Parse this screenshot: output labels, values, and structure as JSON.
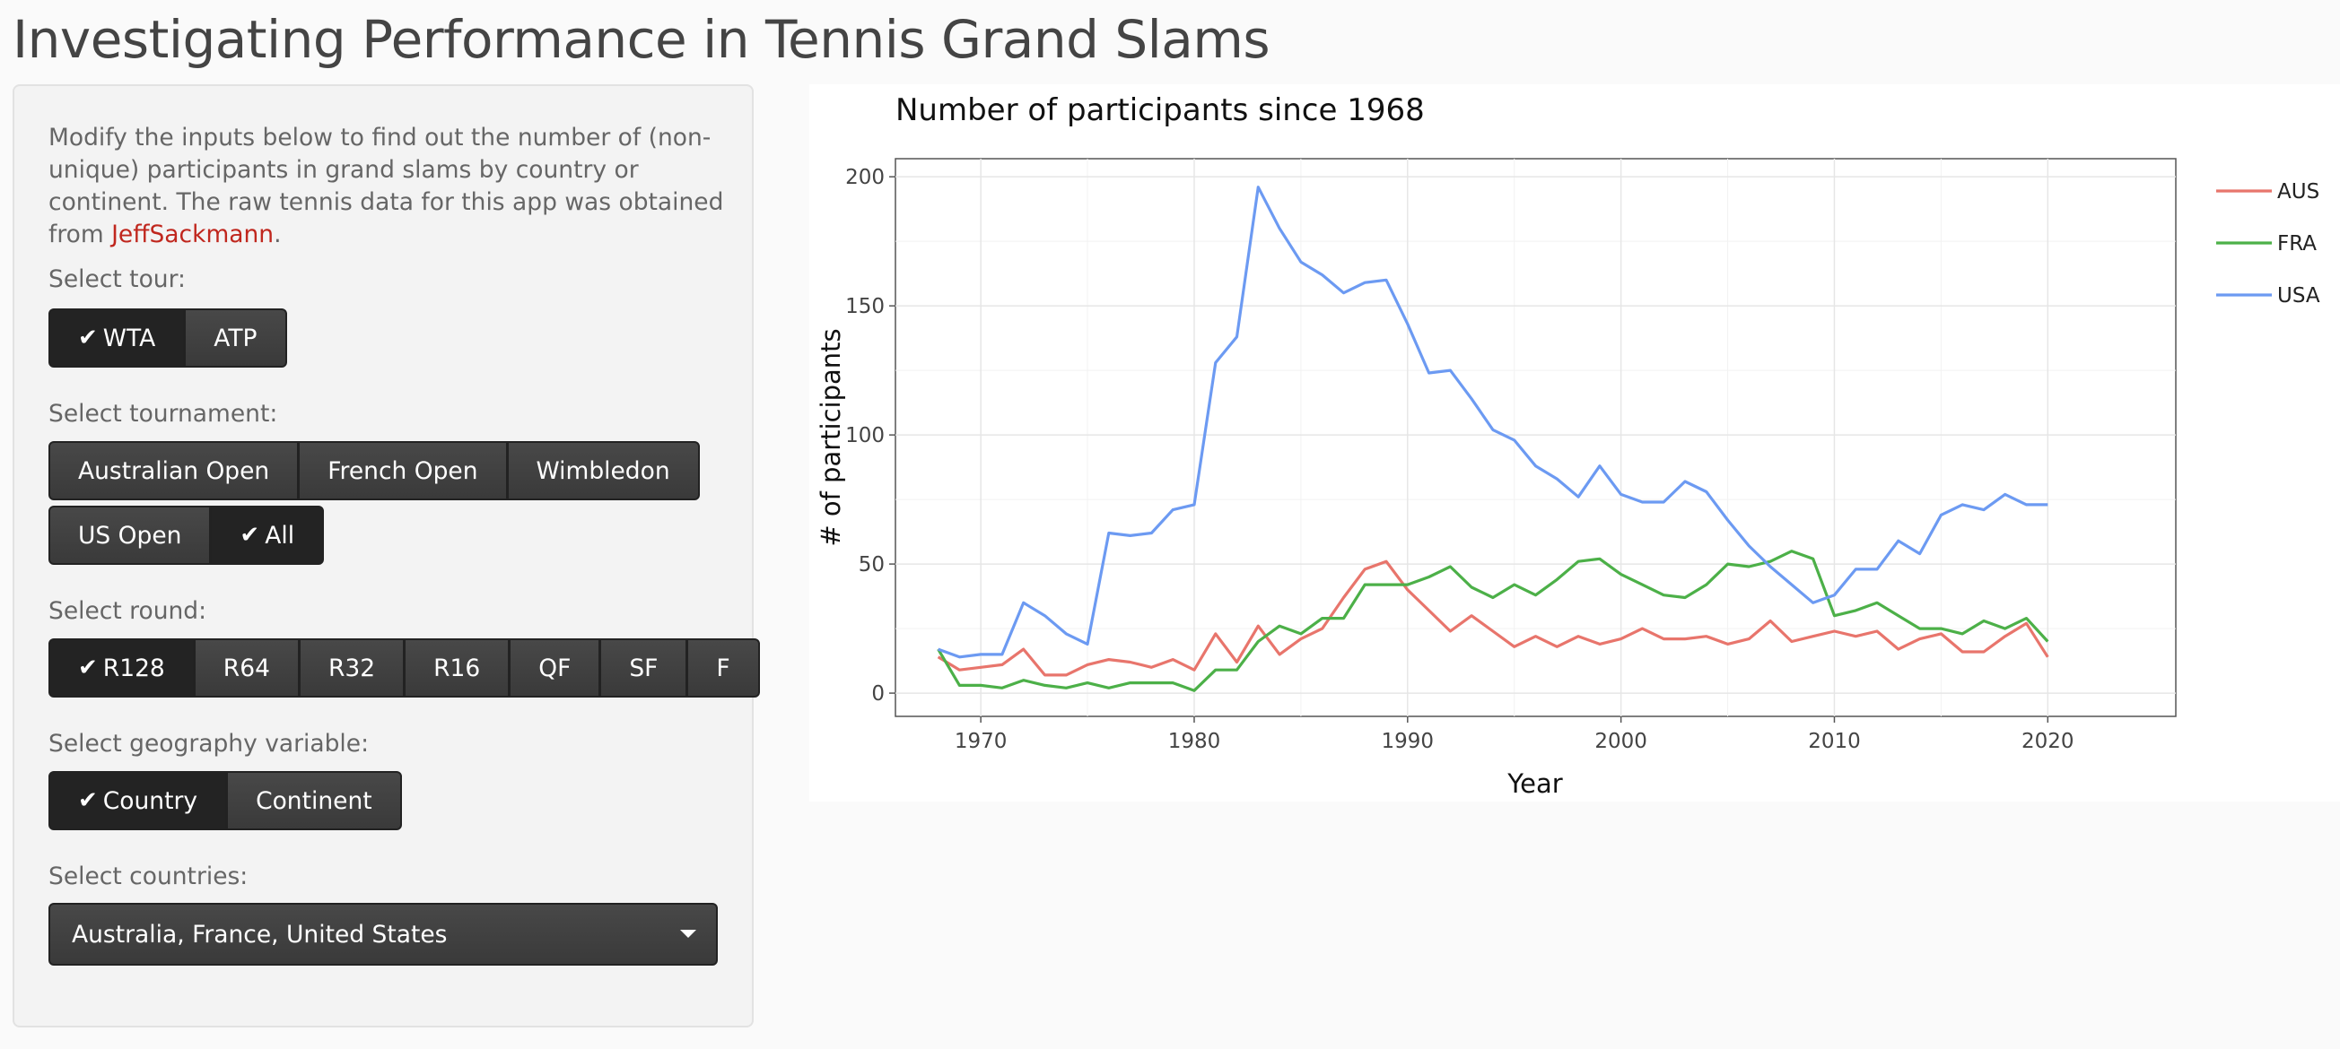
{
  "page": {
    "title": "Investigating Performance in Tennis Grand Slams"
  },
  "sidebar": {
    "intro_text": "Modify the inputs below to find out the number of (non-unique) participants in grand slams by country or continent. The raw tennis data for this app was obtained from ",
    "intro_link": "JeffSackmann",
    "intro_end": ".",
    "tour": {
      "label": "Select tour:",
      "options": [
        "WTA",
        "ATP"
      ],
      "selected": "WTA"
    },
    "tournament": {
      "label": "Select tournament:",
      "options": [
        "Australian Open",
        "French Open",
        "Wimbledon",
        "US Open",
        "All"
      ],
      "selected": "All"
    },
    "round": {
      "label": "Select round:",
      "options": [
        "R128",
        "R64",
        "R32",
        "R16",
        "QF",
        "SF",
        "F"
      ],
      "selected": "R128"
    },
    "geography": {
      "label": "Select geography variable:",
      "options": [
        "Country",
        "Continent"
      ],
      "selected": "Country"
    },
    "countries": {
      "label": "Select countries:",
      "value": "Australia, France, United States"
    },
    "check_icon": "check-icon",
    "dropdown_icon": "caret-down-icon"
  },
  "chart_data": {
    "type": "line",
    "title": "Number of participants since 1968",
    "xlabel": "Year",
    "ylabel": "# of participants",
    "xlim": [
      1966,
      2026
    ],
    "ylim": [
      -9,
      207
    ],
    "xticks": [
      1970,
      1980,
      1990,
      2000,
      2010,
      2020
    ],
    "yticks": [
      0,
      50,
      100,
      150,
      200
    ],
    "grid": true,
    "legend_position": "right",
    "x": [
      1968,
      1969,
      1970,
      1971,
      1972,
      1973,
      1974,
      1975,
      1976,
      1977,
      1978,
      1979,
      1980,
      1981,
      1982,
      1983,
      1984,
      1985,
      1986,
      1987,
      1988,
      1989,
      1990,
      1991,
      1992,
      1993,
      1994,
      1995,
      1996,
      1997,
      1998,
      1999,
      2000,
      2001,
      2002,
      2003,
      2004,
      2005,
      2006,
      2007,
      2008,
      2009,
      2010,
      2011,
      2012,
      2013,
      2014,
      2015,
      2016,
      2017,
      2018,
      2019,
      2020
    ],
    "series": [
      {
        "name": "AUS",
        "color": "#e8756c",
        "values": [
          14,
          9,
          10,
          11,
          17,
          7,
          7,
          11,
          13,
          12,
          10,
          13,
          9,
          23,
          12,
          26,
          15,
          21,
          25,
          37,
          48,
          51,
          40,
          32,
          24,
          30,
          24,
          18,
          22,
          18,
          22,
          19,
          21,
          25,
          21,
          21,
          22,
          19,
          21,
          28,
          20,
          22,
          24,
          22,
          24,
          17,
          21,
          23,
          16,
          16,
          22,
          27,
          14
        ]
      },
      {
        "name": "FRA",
        "color": "#4cb048",
        "values": [
          17,
          3,
          3,
          2,
          5,
          3,
          2,
          4,
          2,
          4,
          4,
          4,
          1,
          9,
          9,
          20,
          26,
          23,
          29,
          29,
          42,
          42,
          42,
          45,
          49,
          41,
          37,
          42,
          38,
          44,
          51,
          52,
          46,
          42,
          38,
          37,
          42,
          50,
          49,
          51,
          55,
          52,
          30,
          32,
          35,
          30,
          25,
          25,
          23,
          28,
          25,
          29,
          20
        ]
      },
      {
        "name": "USA",
        "color": "#6c9af2",
        "values": [
          17,
          14,
          15,
          15,
          35,
          30,
          23,
          19,
          62,
          61,
          62,
          71,
          73,
          128,
          138,
          196,
          180,
          167,
          162,
          155,
          159,
          160,
          143,
          124,
          125,
          114,
          102,
          98,
          88,
          83,
          76,
          88,
          77,
          74,
          74,
          82,
          78,
          67,
          57,
          49,
          42,
          35,
          38,
          48,
          48,
          59,
          54,
          69,
          73,
          71,
          77,
          73,
          73
        ]
      }
    ]
  }
}
